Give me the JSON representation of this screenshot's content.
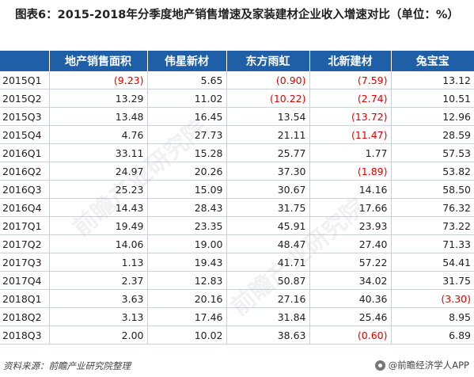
{
  "title": "图表6：2015-2018年分季度地产销售增速及家装建材企业收入增速对比（单位：%）",
  "table": {
    "headers": [
      "",
      "地产销售面积",
      "伟星新材",
      "东方雨虹",
      "北新建材",
      "兔宝宝"
    ],
    "rows": [
      {
        "label": "2015Q1",
        "cells": [
          {
            "v": "(9.23)",
            "neg": true
          },
          {
            "v": "5.65",
            "neg": false
          },
          {
            "v": "(0.90)",
            "neg": true
          },
          {
            "v": "(7.59)",
            "neg": true
          },
          {
            "v": "13.12",
            "neg": false
          }
        ]
      },
      {
        "label": "2015Q2",
        "cells": [
          {
            "v": "13.29",
            "neg": false
          },
          {
            "v": "11.02",
            "neg": false
          },
          {
            "v": "(10.22)",
            "neg": true
          },
          {
            "v": "(2.74)",
            "neg": true
          },
          {
            "v": "10.51",
            "neg": false
          }
        ]
      },
      {
        "label": "2015Q3",
        "cells": [
          {
            "v": "13.48",
            "neg": false
          },
          {
            "v": "16.45",
            "neg": false
          },
          {
            "v": "13.54",
            "neg": false
          },
          {
            "v": "(13.72)",
            "neg": true
          },
          {
            "v": "12.96",
            "neg": false
          }
        ]
      },
      {
        "label": "2015Q4",
        "cells": [
          {
            "v": "4.76",
            "neg": false
          },
          {
            "v": "27.73",
            "neg": false
          },
          {
            "v": "21.11",
            "neg": false
          },
          {
            "v": "(11.47)",
            "neg": true
          },
          {
            "v": "28.59",
            "neg": false
          }
        ]
      },
      {
        "label": "2016Q1",
        "cells": [
          {
            "v": "33.11",
            "neg": false
          },
          {
            "v": "15.28",
            "neg": false
          },
          {
            "v": "25.77",
            "neg": false
          },
          {
            "v": "1.77",
            "neg": false
          },
          {
            "v": "57.53",
            "neg": false
          }
        ]
      },
      {
        "label": "2016Q2",
        "cells": [
          {
            "v": "24.97",
            "neg": false
          },
          {
            "v": "20.26",
            "neg": false
          },
          {
            "v": "37.30",
            "neg": false
          },
          {
            "v": "(1.89)",
            "neg": true
          },
          {
            "v": "53.82",
            "neg": false
          }
        ]
      },
      {
        "label": "2016Q3",
        "cells": [
          {
            "v": "25.23",
            "neg": false
          },
          {
            "v": "15.09",
            "neg": false
          },
          {
            "v": "30.67",
            "neg": false
          },
          {
            "v": "14.16",
            "neg": false
          },
          {
            "v": "58.50",
            "neg": false
          }
        ]
      },
      {
        "label": "2016Q4",
        "cells": [
          {
            "v": "14.43",
            "neg": false
          },
          {
            "v": "28.43",
            "neg": false
          },
          {
            "v": "31.75",
            "neg": false
          },
          {
            "v": "17.66",
            "neg": false
          },
          {
            "v": "76.32",
            "neg": false
          }
        ]
      },
      {
        "label": "2017Q1",
        "cells": [
          {
            "v": "19.49",
            "neg": false
          },
          {
            "v": "23.35",
            "neg": false
          },
          {
            "v": "45.91",
            "neg": false
          },
          {
            "v": "23.93",
            "neg": false
          },
          {
            "v": "73.22",
            "neg": false
          }
        ]
      },
      {
        "label": "2017Q2",
        "cells": [
          {
            "v": "14.06",
            "neg": false
          },
          {
            "v": "19.00",
            "neg": false
          },
          {
            "v": "48.47",
            "neg": false
          },
          {
            "v": "27.40",
            "neg": false
          },
          {
            "v": "71.33",
            "neg": false
          }
        ]
      },
      {
        "label": "2017Q3",
        "cells": [
          {
            "v": "1.13",
            "neg": false
          },
          {
            "v": "19.43",
            "neg": false
          },
          {
            "v": "41.71",
            "neg": false
          },
          {
            "v": "57.22",
            "neg": false
          },
          {
            "v": "54.41",
            "neg": false
          }
        ]
      },
      {
        "label": "2017Q4",
        "cells": [
          {
            "v": "2.37",
            "neg": false
          },
          {
            "v": "12.83",
            "neg": false
          },
          {
            "v": "50.87",
            "neg": false
          },
          {
            "v": "34.02",
            "neg": false
          },
          {
            "v": "31.75",
            "neg": false
          }
        ]
      },
      {
        "label": "2018Q1",
        "cells": [
          {
            "v": "3.63",
            "neg": false
          },
          {
            "v": "20.16",
            "neg": false
          },
          {
            "v": "27.16",
            "neg": false
          },
          {
            "v": "40.36",
            "neg": false
          },
          {
            "v": "(3.30)",
            "neg": true
          }
        ]
      },
      {
        "label": "2018Q2",
        "cells": [
          {
            "v": "3.13",
            "neg": false
          },
          {
            "v": "17.46",
            "neg": false
          },
          {
            "v": "31.84",
            "neg": false
          },
          {
            "v": "25.46",
            "neg": false
          },
          {
            "v": "8.95",
            "neg": false
          }
        ]
      },
      {
        "label": "2018Q3",
        "cells": [
          {
            "v": "2.00",
            "neg": false
          },
          {
            "v": "10.02",
            "neg": false
          },
          {
            "v": "38.63",
            "neg": false
          },
          {
            "v": "(0.60)",
            "neg": true
          },
          {
            "v": "6.89",
            "neg": false
          }
        ]
      }
    ]
  },
  "footer": {
    "source": "资料来源：前瞻产业研究院整理",
    "brand": "@前瞻经济学人APP"
  },
  "watermark": "前瞻产业研究院",
  "colors": {
    "header_bg": "#1f5fa8",
    "header_text": "#ffffff",
    "negative": "#e00000",
    "grid": "#c9d3e0"
  }
}
